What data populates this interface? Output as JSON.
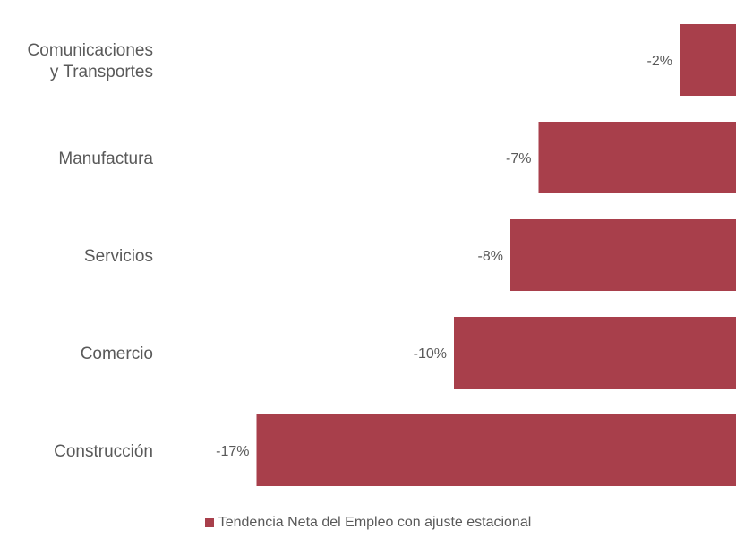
{
  "chart_data": {
    "type": "bar",
    "orientation": "horizontal",
    "categories": [
      "Comunicaciones\ny Transportes",
      "Manufactura",
      "Servicios",
      "Comercio",
      "Construcción"
    ],
    "series": [
      {
        "name": "Tendencia Neta del Empleo con ajuste estacional",
        "values": [
          -2,
          -7,
          -8,
          -10,
          -17
        ],
        "labels": [
          "-2%",
          "-7%",
          "-8%",
          "-10%",
          "-17%"
        ],
        "color": "#a83f4b"
      }
    ],
    "title": "",
    "xlabel": "",
    "ylabel": "",
    "xlim": [
      -17,
      0
    ],
    "grid": false,
    "legend": "bottom-center"
  }
}
